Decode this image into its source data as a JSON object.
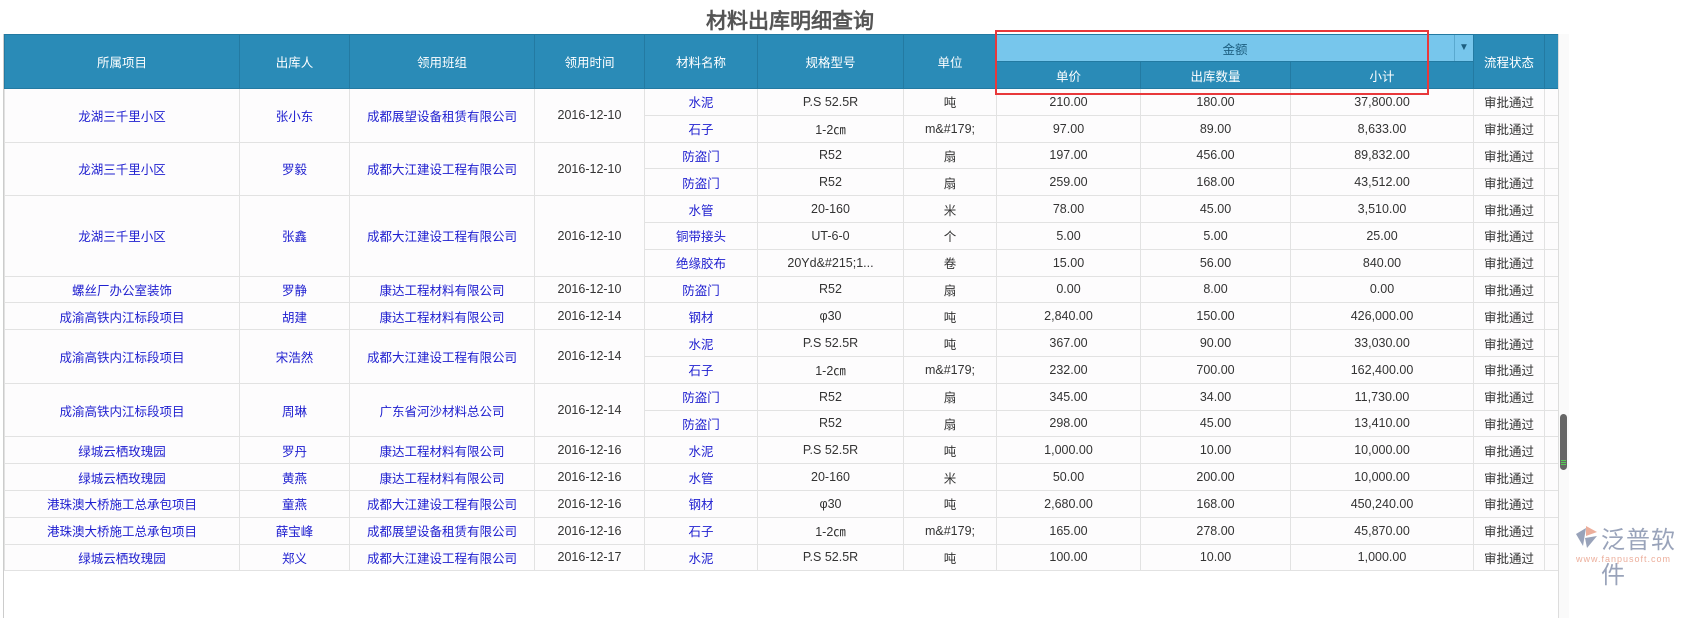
{
  "page_title": "材料出库明细查询",
  "headers": {
    "project": "所属项目",
    "person": "出库人",
    "team": "领用班组",
    "date": "领用时间",
    "material": "材料名称",
    "spec": "规格型号",
    "unit": "单位",
    "money_group": "金额",
    "price": "单价",
    "qty": "出库数量",
    "subtotal": "小计",
    "status": "流程状态"
  },
  "colors": {
    "header_bg": "#2a8bb7",
    "group_header_bg": "#77c6ec",
    "link": "#2020d0",
    "highlight_box": "#e8383b"
  },
  "groups": [
    {
      "project": "龙湖三千里小区",
      "person": "张小东",
      "team": "成都展望设备租赁有限公司",
      "date": "2016-12-10",
      "items": [
        {
          "material": "水泥",
          "spec": "P.S 52.5R",
          "unit": "吨",
          "price": "210.00",
          "qty": "180.00",
          "subtotal": "37,800.00",
          "status": "审批通过"
        },
        {
          "material": "石子",
          "spec": "1-2㎝",
          "unit": "m&#179;",
          "price": "97.00",
          "qty": "89.00",
          "subtotal": "8,633.00",
          "status": "审批通过"
        }
      ]
    },
    {
      "project": "龙湖三千里小区",
      "person": "罗毅",
      "team": "成都大江建设工程有限公司",
      "date": "2016-12-10",
      "items": [
        {
          "material": "防盗门",
          "spec": "R52",
          "unit": "扇",
          "price": "197.00",
          "qty": "456.00",
          "subtotal": "89,832.00",
          "status": "审批通过"
        },
        {
          "material": "防盗门",
          "spec": "R52",
          "unit": "扇",
          "price": "259.00",
          "qty": "168.00",
          "subtotal": "43,512.00",
          "status": "审批通过"
        }
      ]
    },
    {
      "project": "龙湖三千里小区",
      "person": "张鑫",
      "team": "成都大江建设工程有限公司",
      "date": "2016-12-10",
      "items": [
        {
          "material": "水管",
          "spec": "20-160",
          "unit": "米",
          "price": "78.00",
          "qty": "45.00",
          "subtotal": "3,510.00",
          "status": "审批通过"
        },
        {
          "material": "铜带接头",
          "spec": "UT-6-0",
          "unit": "个",
          "price": "5.00",
          "qty": "5.00",
          "subtotal": "25.00",
          "status": "审批通过"
        },
        {
          "material": "绝缘胶布",
          "spec": "20Yd&#215;1...",
          "unit": "卷",
          "price": "15.00",
          "qty": "56.00",
          "subtotal": "840.00",
          "status": "审批通过"
        }
      ]
    },
    {
      "project": "螺丝厂办公室装饰",
      "person": "罗静",
      "team": "康达工程材料有限公司",
      "date": "2016-12-10",
      "items": [
        {
          "material": "防盗门",
          "spec": "R52",
          "unit": "扇",
          "price": "0.00",
          "qty": "8.00",
          "subtotal": "0.00",
          "status": "审批通过"
        }
      ]
    },
    {
      "project": "成渝高铁内江标段项目",
      "person": "胡建",
      "team": "康达工程材料有限公司",
      "date": "2016-12-14",
      "items": [
        {
          "material": "钢材",
          "spec": "φ30",
          "unit": "吨",
          "price": "2,840.00",
          "qty": "150.00",
          "subtotal": "426,000.00",
          "status": "审批通过"
        }
      ]
    },
    {
      "project": "成渝高铁内江标段项目",
      "person": "宋浩然",
      "team": "成都大江建设工程有限公司",
      "date": "2016-12-14",
      "items": [
        {
          "material": "水泥",
          "spec": "P.S 52.5R",
          "unit": "吨",
          "price": "367.00",
          "qty": "90.00",
          "subtotal": "33,030.00",
          "status": "审批通过"
        },
        {
          "material": "石子",
          "spec": "1-2㎝",
          "unit": "m&#179;",
          "price": "232.00",
          "qty": "700.00",
          "subtotal": "162,400.00",
          "status": "审批通过"
        }
      ]
    },
    {
      "project": "成渝高铁内江标段项目",
      "person": "周琳",
      "team": "广东省河沙材料总公司",
      "date": "2016-12-14",
      "items": [
        {
          "material": "防盗门",
          "spec": "R52",
          "unit": "扇",
          "price": "345.00",
          "qty": "34.00",
          "subtotal": "11,730.00",
          "status": "审批通过"
        },
        {
          "material": "防盗门",
          "spec": "R52",
          "unit": "扇",
          "price": "298.00",
          "qty": "45.00",
          "subtotal": "13,410.00",
          "status": "审批通过"
        }
      ]
    },
    {
      "project": "绿城云栖玫瑰园",
      "person": "罗丹",
      "team": "康达工程材料有限公司",
      "date": "2016-12-16",
      "items": [
        {
          "material": "水泥",
          "spec": "P.S 52.5R",
          "unit": "吨",
          "price": "1,000.00",
          "qty": "10.00",
          "subtotal": "10,000.00",
          "status": "审批通过"
        }
      ]
    },
    {
      "project": "绿城云栖玫瑰园",
      "person": "黄燕",
      "team": "康达工程材料有限公司",
      "date": "2016-12-16",
      "items": [
        {
          "material": "水管",
          "spec": "20-160",
          "unit": "米",
          "price": "50.00",
          "qty": "200.00",
          "subtotal": "10,000.00",
          "status": "审批通过"
        }
      ]
    },
    {
      "project": "港珠澳大桥施工总承包项目",
      "person": "童燕",
      "team": "成都大江建设工程有限公司",
      "date": "2016-12-16",
      "items": [
        {
          "material": "钢材",
          "spec": "φ30",
          "unit": "吨",
          "price": "2,680.00",
          "qty": "168.00",
          "subtotal": "450,240.00",
          "status": "审批通过"
        }
      ]
    },
    {
      "project": "港珠澳大桥施工总承包项目",
      "person": "薛宝峰",
      "team": "成都展望设备租赁有限公司",
      "date": "2016-12-16",
      "items": [
        {
          "material": "石子",
          "spec": "1-2㎝",
          "unit": "m&#179;",
          "price": "165.00",
          "qty": "278.00",
          "subtotal": "45,870.00",
          "status": "审批通过"
        }
      ]
    },
    {
      "project": "绿城云栖玫瑰园",
      "person": "郑义",
      "team": "成都大江建设工程有限公司",
      "date": "2016-12-17",
      "items": [
        {
          "material": "水泥",
          "spec": "P.S 52.5R",
          "unit": "吨",
          "price": "100.00",
          "qty": "10.00",
          "subtotal": "1,000.00",
          "status": "审批通过"
        }
      ]
    }
  ],
  "watermark": {
    "brand": "泛普软件",
    "url": "www.fanpusoft.com"
  }
}
